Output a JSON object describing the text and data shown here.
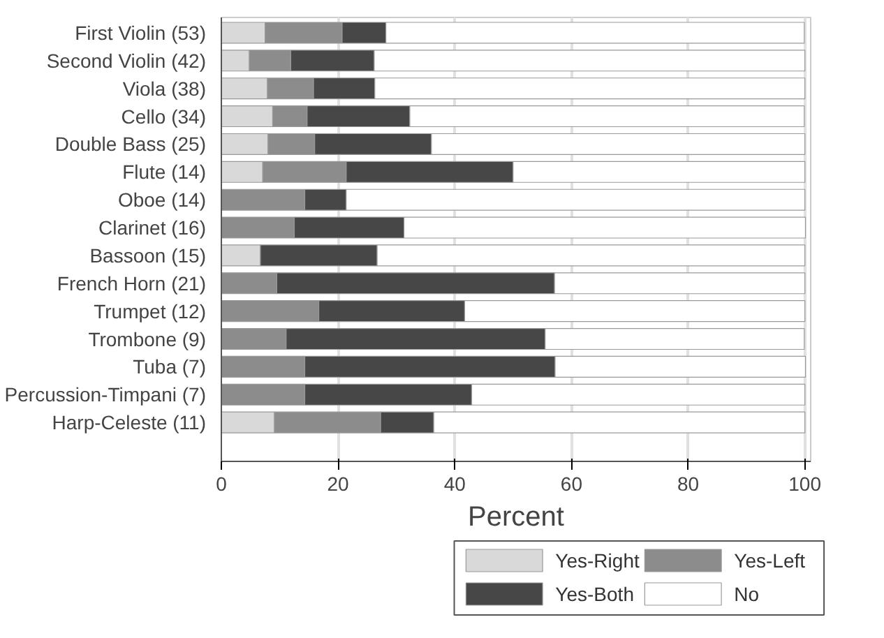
{
  "chart_data": {
    "type": "bar",
    "orientation": "horizontal",
    "stacked": true,
    "xlabel": "Percent",
    "categories": [
      "First Violin (53)",
      "Second Violin (42)",
      "Viola (38)",
      "Cello (34)",
      "Double Bass (25)",
      "Flute (14)",
      "Oboe (14)",
      "Clarinet (16)",
      "Bassoon (15)",
      "French Horn (21)",
      "Trumpet (12)",
      "Trombone (9)",
      "Tuba (7)",
      "Percussion-Timpani (7)",
      "Harp-Celeste (11)"
    ],
    "series": [
      {
        "name": "Yes-Right",
        "color": "#d9d9d9",
        "values": [
          7.5,
          4.8,
          7.9,
          8.8,
          8.0,
          7.1,
          0,
          0,
          6.7,
          0,
          0,
          0,
          0,
          0,
          9.1
        ]
      },
      {
        "name": "Yes-Left",
        "color": "#8c8c8c",
        "values": [
          13.2,
          7.1,
          7.9,
          5.9,
          8.0,
          14.3,
          14.3,
          12.5,
          0,
          9.5,
          16.7,
          11.1,
          14.3,
          14.3,
          18.2
        ]
      },
      {
        "name": "Yes-Both",
        "color": "#474747",
        "values": [
          7.5,
          14.3,
          10.5,
          17.6,
          20.0,
          28.6,
          7.1,
          18.8,
          20.0,
          47.6,
          25.0,
          44.4,
          42.9,
          28.6,
          9.1
        ]
      },
      {
        "name": "No",
        "color": "#ffffff",
        "values": [
          71.7,
          73.8,
          73.7,
          67.6,
          64.0,
          50.0,
          78.6,
          68.8,
          73.3,
          42.9,
          58.3,
          44.4,
          42.9,
          57.1,
          63.6
        ]
      }
    ],
    "xlim": [
      0,
      101
    ],
    "xticks": [
      0,
      20,
      40,
      60,
      80,
      100
    ],
    "grid": "x",
    "legend": "bottom"
  }
}
